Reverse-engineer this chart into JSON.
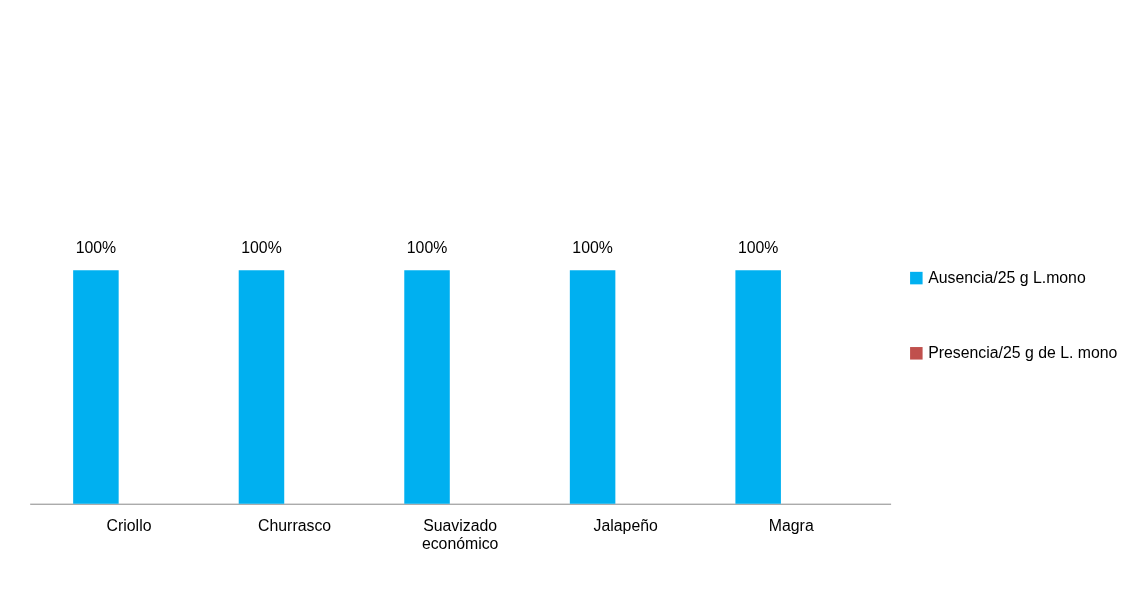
{
  "chart_data": {
    "type": "bar",
    "categories": [
      "Criollo",
      "Churrasco",
      "Suavizado económico",
      "Jalapeño",
      "Magra"
    ],
    "series": [
      {
        "name": "Ausencia/25 g L.mono",
        "color": "#00b0f0",
        "values": [
          100,
          100,
          100,
          100,
          100
        ],
        "value_labels": [
          "100%",
          "100%",
          "100%",
          "100%",
          "100%"
        ]
      },
      {
        "name": "Presencia/25 g de L. mono",
        "color": "#c0504d",
        "values": [
          null,
          null,
          null,
          null,
          null
        ]
      }
    ],
    "tick_labels": "x",
    "grid": false,
    "legend": "right"
  }
}
